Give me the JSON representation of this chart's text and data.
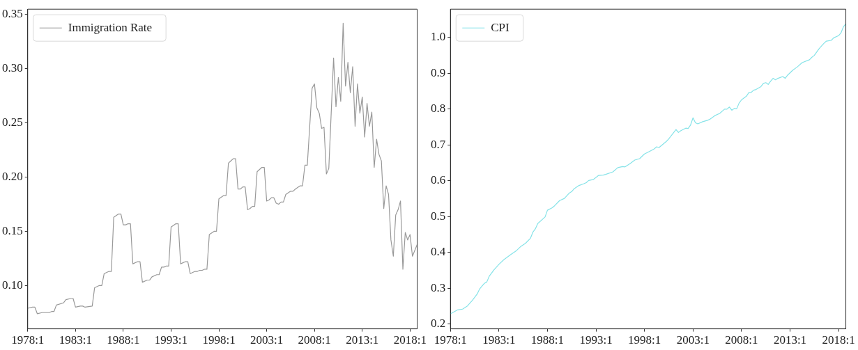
{
  "chart_data": [
    {
      "type": "line",
      "xlim": [
        "1978-01",
        "2018-10"
      ],
      "ylim": [
        0.06,
        0.355
      ],
      "xticks": [
        {
          "value": "1978-01",
          "label": "1978:1"
        },
        {
          "value": "1983-01",
          "label": "1983:1"
        },
        {
          "value": "1988-01",
          "label": "1988:1"
        },
        {
          "value": "1993-01",
          "label": "1993:1"
        },
        {
          "value": "1998-01",
          "label": "1998:1"
        },
        {
          "value": "2003-01",
          "label": "2003:1"
        },
        {
          "value": "2008-01",
          "label": "2008:1"
        },
        {
          "value": "2013-01",
          "label": "2013:1"
        },
        {
          "value": "2018-01",
          "label": "2018:1"
        }
      ],
      "yticks": [
        {
          "value": 0.1,
          "label": "0.10"
        },
        {
          "value": 0.15,
          "label": "0.15"
        },
        {
          "value": 0.2,
          "label": "0.20"
        },
        {
          "value": 0.25,
          "label": "0.25"
        },
        {
          "value": 0.3,
          "label": "0.30"
        },
        {
          "value": 0.35,
          "label": "0.35"
        }
      ],
      "grid": false,
      "legend": "top left",
      "marker": "none",
      "line_style": "solid",
      "series": [
        {
          "name": "Immigration Rate",
          "color": "#999999",
          "x": [
            "1978-01",
            "1978-07",
            "1978-10",
            "1979-01",
            "1979-07",
            "1980-04",
            "1980-07",
            "1980-10",
            "1981-01",
            "1981-10",
            "1982-01",
            "1982-07",
            "1982-10",
            "1983-01",
            "1983-07",
            "1983-10",
            "1984-01",
            "1984-10",
            "1985-01",
            "1985-07",
            "1985-10",
            "1986-01",
            "1986-07",
            "1986-10",
            "1987-01",
            "1987-07",
            "1987-10",
            "1988-01",
            "1988-04",
            "1988-07",
            "1988-10",
            "1989-01",
            "1989-07",
            "1989-10",
            "1990-01",
            "1990-07",
            "1990-10",
            "1991-01",
            "1991-07",
            "1991-10",
            "1992-01",
            "1992-04",
            "1992-07",
            "1992-10",
            "1993-01",
            "1993-07",
            "1993-10",
            "1994-01",
            "1994-07",
            "1994-10",
            "1995-01",
            "1995-07",
            "1995-10",
            "1996-01",
            "1996-04",
            "1996-07",
            "1996-10",
            "1997-01",
            "1997-07",
            "1997-10",
            "1998-01",
            "1998-07",
            "1998-10",
            "1999-01",
            "1999-04",
            "1999-07",
            "1999-10",
            "2000-01",
            "2000-04",
            "2000-07",
            "2000-10",
            "2001-01",
            "2001-04",
            "2001-07",
            "2001-10",
            "2002-01",
            "2002-07",
            "2002-10",
            "2003-01",
            "2003-04",
            "2003-07",
            "2003-10",
            "2004-01",
            "2004-04",
            "2004-07",
            "2004-10",
            "2005-01",
            "2005-07",
            "2005-10",
            "2006-01",
            "2006-07",
            "2006-10",
            "2007-01",
            "2007-04",
            "2007-10",
            "2008-01",
            "2008-04",
            "2008-07",
            "2008-10",
            "2009-01",
            "2009-04",
            "2009-07",
            "2010-01",
            "2010-04",
            "2010-07",
            "2010-10",
            "2011-01",
            "2011-04",
            "2011-07",
            "2011-10",
            "2012-01",
            "2012-04",
            "2012-07",
            "2012-10",
            "2013-01",
            "2013-04",
            "2013-07",
            "2013-10",
            "2014-01",
            "2014-04",
            "2014-07",
            "2014-10",
            "2015-01",
            "2015-04",
            "2015-07",
            "2015-10",
            "2016-01",
            "2016-04",
            "2016-07",
            "2016-10",
            "2017-01",
            "2017-04",
            "2017-07",
            "2017-10",
            "2018-01",
            "2018-04",
            "2018-10"
          ],
          "values": [
            0.079,
            0.08,
            0.08,
            0.074,
            0.075,
            0.075,
            0.076,
            0.076,
            0.082,
            0.084,
            0.087,
            0.088,
            0.088,
            0.08,
            0.081,
            0.081,
            0.08,
            0.081,
            0.098,
            0.1,
            0.1,
            0.111,
            0.113,
            0.113,
            0.163,
            0.166,
            0.166,
            0.156,
            0.156,
            0.157,
            0.157,
            0.12,
            0.122,
            0.122,
            0.103,
            0.105,
            0.105,
            0.108,
            0.11,
            0.11,
            0.117,
            0.117,
            0.118,
            0.118,
            0.154,
            0.157,
            0.157,
            0.12,
            0.122,
            0.122,
            0.111,
            0.113,
            0.113,
            0.114,
            0.114,
            0.115,
            0.115,
            0.147,
            0.15,
            0.15,
            0.18,
            0.183,
            0.183,
            0.213,
            0.215,
            0.217,
            0.217,
            0.189,
            0.189,
            0.191,
            0.191,
            0.17,
            0.171,
            0.173,
            0.173,
            0.205,
            0.209,
            0.209,
            0.178,
            0.179,
            0.181,
            0.181,
            0.176,
            0.175,
            0.177,
            0.177,
            0.184,
            0.187,
            0.187,
            0.189,
            0.192,
            0.192,
            0.211,
            0.211,
            0.282,
            0.286,
            0.264,
            0.259,
            0.245,
            0.246,
            0.203,
            0.208,
            0.31,
            0.265,
            0.292,
            0.27,
            0.342,
            0.284,
            0.306,
            0.278,
            0.302,
            0.247,
            0.286,
            0.259,
            0.274,
            0.237,
            0.268,
            0.247,
            0.26,
            0.209,
            0.235,
            0.221,
            0.215,
            0.171,
            0.192,
            0.184,
            0.142,
            0.127,
            0.165,
            0.17,
            0.178,
            0.115,
            0.149,
            0.142,
            0.147,
            0.127,
            0.138
          ]
        }
      ]
    },
    {
      "type": "line",
      "xlim": [
        "1978-01",
        "2018-10"
      ],
      "ylim": [
        0.187,
        1.079
      ],
      "xticks": [
        {
          "value": "1978-01",
          "label": "1978:1"
        },
        {
          "value": "1983-01",
          "label": "1983:1"
        },
        {
          "value": "1988-01",
          "label": "1988:1"
        },
        {
          "value": "1993-01",
          "label": "1993:1"
        },
        {
          "value": "1998-01",
          "label": "1998:1"
        },
        {
          "value": "2003-01",
          "label": "2003:1"
        },
        {
          "value": "2008-01",
          "label": "2008:1"
        },
        {
          "value": "2013-01",
          "label": "2013:1"
        },
        {
          "value": "2018-01",
          "label": "2018:1"
        }
      ],
      "yticks": [
        0.2,
        0.3,
        0.4,
        0.5,
        0.6,
        0.7,
        0.8,
        0.9,
        {
          "value": 1,
          "label": "1.0"
        }
      ],
      "grid": false,
      "legend": "top left",
      "marker": "none",
      "line_style": "solid",
      "series": [
        {
          "name": "CPI",
          "color": "#86e3e8",
          "x": [
            "1978-01",
            "1978-10",
            "1979-04",
            "1979-10",
            "1980-04",
            "1980-10",
            "1981-01",
            "1981-07",
            "1981-10",
            "1982-01",
            "1982-07",
            "1983-01",
            "1983-07",
            "1984-04",
            "1984-10",
            "1985-04",
            "1985-10",
            "1986-04",
            "1986-07",
            "1986-10",
            "1987-01",
            "1987-10",
            "1988-01",
            "1988-07",
            "1988-10",
            "1989-04",
            "1989-10",
            "1990-04",
            "1990-07",
            "1990-10",
            "1991-04",
            "1991-10",
            "1992-01",
            "1992-04",
            "1992-10",
            "1993-04",
            "1993-10",
            "1994-01",
            "1994-10",
            "1995-04",
            "1995-10",
            "1996-01",
            "1996-07",
            "1997-01",
            "1997-07",
            "1998-01",
            "1998-07",
            "1999-01",
            "1999-04",
            "1999-07",
            "2000-04",
            "2000-07",
            "2000-10",
            "2001-04",
            "2001-07",
            "2001-10",
            "2002-04",
            "2002-07",
            "2002-10",
            "2003-01",
            "2003-04",
            "2003-07",
            "2004-01",
            "2004-07",
            "2004-10",
            "2005-04",
            "2005-10",
            "2006-04",
            "2006-07",
            "2006-10",
            "2007-01",
            "2007-04",
            "2007-07",
            "2007-10",
            "2008-01",
            "2008-07",
            "2008-10",
            "2009-01",
            "2009-04",
            "2009-07",
            "2010-01",
            "2010-04",
            "2010-07",
            "2010-10",
            "2011-01",
            "2011-04",
            "2011-07",
            "2011-10",
            "2012-04",
            "2012-07",
            "2012-10",
            "2013-04",
            "2013-10",
            "2014-04",
            "2015-01",
            "2015-04",
            "2015-07",
            "2016-01",
            "2016-07",
            "2016-10",
            "2017-04",
            "2017-07",
            "2018-01",
            "2018-04",
            "2018-07",
            "2018-10"
          ],
          "values": [
            0.229,
            0.24,
            0.242,
            0.251,
            0.266,
            0.284,
            0.298,
            0.314,
            0.318,
            0.334,
            0.352,
            0.367,
            0.38,
            0.395,
            0.404,
            0.417,
            0.426,
            0.44,
            0.457,
            0.466,
            0.481,
            0.499,
            0.518,
            0.525,
            0.531,
            0.545,
            0.551,
            0.566,
            0.57,
            0.578,
            0.587,
            0.592,
            0.595,
            0.601,
            0.604,
            0.615,
            0.616,
            0.618,
            0.625,
            0.637,
            0.64,
            0.639,
            0.648,
            0.658,
            0.662,
            0.675,
            0.682,
            0.689,
            0.695,
            0.693,
            0.71,
            0.717,
            0.726,
            0.743,
            0.735,
            0.74,
            0.747,
            0.746,
            0.756,
            0.776,
            0.762,
            0.759,
            0.765,
            0.769,
            0.772,
            0.782,
            0.788,
            0.8,
            0.8,
            0.806,
            0.797,
            0.802,
            0.801,
            0.817,
            0.826,
            0.836,
            0.846,
            0.847,
            0.853,
            0.855,
            0.863,
            0.872,
            0.874,
            0.869,
            0.878,
            0.886,
            0.882,
            0.886,
            0.891,
            0.886,
            0.895,
            0.908,
            0.918,
            0.93,
            0.938,
            0.945,
            0.95,
            0.969,
            0.984,
            0.99,
            0.992,
            0.999,
            1.005,
            1.013,
            1.03,
            1.038
          ]
        }
      ]
    }
  ]
}
